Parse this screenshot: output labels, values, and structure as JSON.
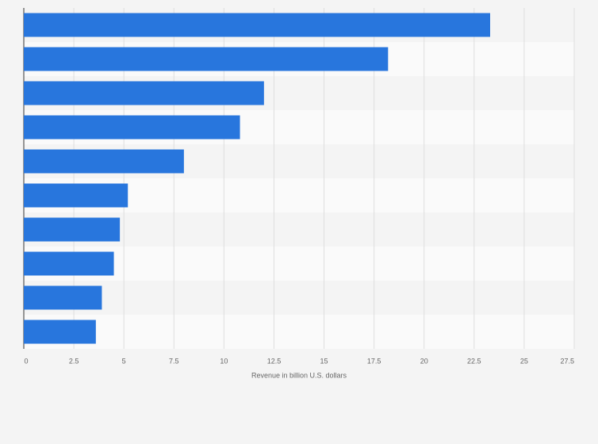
{
  "chart_data": {
    "type": "bar",
    "orientation": "horizontal",
    "x_label": "Revenue in billion U.S. dollars",
    "categories": [
      null,
      null,
      null,
      null,
      null,
      null,
      null,
      null,
      null,
      null
    ],
    "values": [
      23.3,
      18.2,
      12.0,
      10.8,
      8.0,
      5.2,
      4.8,
      4.5,
      3.9,
      3.6
    ],
    "color": "#2876dd",
    "xlim": [
      0,
      27.5
    ],
    "xticks": [
      0,
      2.5,
      5,
      7.5,
      10,
      12.5,
      15,
      17.5,
      20,
      22.5,
      25,
      27.5
    ],
    "grid": true
  }
}
